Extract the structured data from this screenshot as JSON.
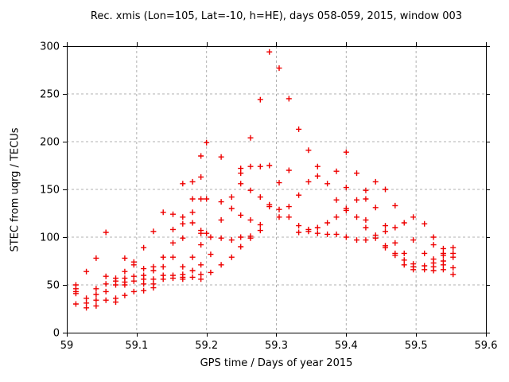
{
  "chart_data": {
    "type": "scatter",
    "title": "Rec. xmis (Lon=105, Lat=-10, h=HE), days 058-059, 2015, window 003",
    "xlabel": "GPS time / Days of year 2015",
    "ylabel": "STEC from uqrg / TECUs",
    "xlim": [
      59,
      59.6
    ],
    "ylim": [
      0,
      300
    ],
    "xticks": {
      "values": [
        59,
        59.1,
        59.2,
        59.3,
        59.4,
        59.5,
        59.6
      ],
      "labels": [
        "59",
        "59.1",
        "59.2",
        "59.3",
        "59.4",
        "59.5",
        "59.6"
      ]
    },
    "yticks": {
      "values": [
        0,
        50,
        100,
        150,
        200,
        250,
        300
      ],
      "labels": [
        "0",
        "50",
        "100",
        "150",
        "200",
        "250",
        "300"
      ]
    },
    "grid": true,
    "grid_color": "#b0b0b0",
    "legend": "none",
    "marker": {
      "shape": "plus",
      "color": "#ee0000",
      "size": 7
    },
    "series": [
      {
        "name": "STEC observations",
        "points": [
          [
            59.013,
            50
          ],
          [
            59.013,
            46
          ],
          [
            59.013,
            43
          ],
          [
            59.013,
            41
          ],
          [
            59.013,
            30
          ],
          [
            59.028,
            64
          ],
          [
            59.028,
            36
          ],
          [
            59.028,
            31
          ],
          [
            59.028,
            26
          ],
          [
            59.042,
            78
          ],
          [
            59.042,
            46
          ],
          [
            59.042,
            40
          ],
          [
            59.042,
            34
          ],
          [
            59.042,
            28
          ],
          [
            59.056,
            105
          ],
          [
            59.056,
            59
          ],
          [
            59.056,
            51
          ],
          [
            59.056,
            43
          ],
          [
            59.056,
            34
          ],
          [
            59.07,
            57
          ],
          [
            59.07,
            54
          ],
          [
            59.07,
            50
          ],
          [
            59.07,
            36
          ],
          [
            59.07,
            32
          ],
          [
            59.083,
            78
          ],
          [
            59.083,
            64
          ],
          [
            59.083,
            57
          ],
          [
            59.083,
            53
          ],
          [
            59.083,
            50
          ],
          [
            59.083,
            39
          ],
          [
            59.096,
            74
          ],
          [
            59.096,
            71
          ],
          [
            59.096,
            59
          ],
          [
            59.096,
            54
          ],
          [
            59.096,
            43
          ],
          [
            59.11,
            89
          ],
          [
            59.11,
            67
          ],
          [
            59.11,
            60
          ],
          [
            59.11,
            56
          ],
          [
            59.11,
            51
          ],
          [
            59.11,
            44
          ],
          [
            59.124,
            106
          ],
          [
            59.124,
            69
          ],
          [
            59.124,
            65
          ],
          [
            59.124,
            56
          ],
          [
            59.124,
            51
          ],
          [
            59.124,
            47
          ],
          [
            59.138,
            126
          ],
          [
            59.138,
            79
          ],
          [
            59.138,
            69
          ],
          [
            59.138,
            60
          ],
          [
            59.138,
            56
          ],
          [
            59.152,
            124
          ],
          [
            59.152,
            108
          ],
          [
            59.152,
            94
          ],
          [
            59.152,
            79
          ],
          [
            59.152,
            60
          ],
          [
            59.152,
            57
          ],
          [
            59.166,
            156
          ],
          [
            59.166,
            121
          ],
          [
            59.166,
            114
          ],
          [
            59.166,
            99
          ],
          [
            59.166,
            69
          ],
          [
            59.166,
            61
          ],
          [
            59.166,
            58
          ],
          [
            59.166,
            56
          ],
          [
            59.18,
            158
          ],
          [
            59.18,
            140
          ],
          [
            59.18,
            126
          ],
          [
            59.18,
            115
          ],
          [
            59.18,
            79
          ],
          [
            59.18,
            65
          ],
          [
            59.18,
            58
          ],
          [
            59.192,
            185
          ],
          [
            59.192,
            163
          ],
          [
            59.192,
            140
          ],
          [
            59.192,
            107
          ],
          [
            59.192,
            104
          ],
          [
            59.192,
            92
          ],
          [
            59.192,
            71
          ],
          [
            59.192,
            61
          ],
          [
            59.192,
            56
          ],
          [
            59.2,
            199
          ],
          [
            59.2,
            140
          ],
          [
            59.2,
            104
          ],
          [
            59.206,
            100
          ],
          [
            59.206,
            82
          ],
          [
            59.206,
            63
          ],
          [
            59.221,
            184
          ],
          [
            59.221,
            137
          ],
          [
            59.221,
            118
          ],
          [
            59.221,
            99
          ],
          [
            59.221,
            71
          ],
          [
            59.236,
            142
          ],
          [
            59.236,
            130
          ],
          [
            59.236,
            97
          ],
          [
            59.236,
            79
          ],
          [
            59.249,
            172
          ],
          [
            59.249,
            167
          ],
          [
            59.249,
            156
          ],
          [
            59.249,
            123
          ],
          [
            59.249,
            100
          ],
          [
            59.249,
            90
          ],
          [
            59.263,
            204
          ],
          [
            59.263,
            174
          ],
          [
            59.263,
            149
          ],
          [
            59.263,
            118
          ],
          [
            59.263,
            101
          ],
          [
            59.263,
            99
          ],
          [
            59.277,
            244
          ],
          [
            59.277,
            174
          ],
          [
            59.277,
            142
          ],
          [
            59.277,
            113
          ],
          [
            59.277,
            107
          ],
          [
            59.29,
            294
          ],
          [
            59.29,
            175
          ],
          [
            59.29,
            134
          ],
          [
            59.29,
            132
          ],
          [
            59.304,
            277
          ],
          [
            59.304,
            157
          ],
          [
            59.304,
            129
          ],
          [
            59.304,
            121
          ],
          [
            59.318,
            245
          ],
          [
            59.318,
            170
          ],
          [
            59.318,
            132
          ],
          [
            59.318,
            121
          ],
          [
            59.332,
            213
          ],
          [
            59.332,
            144
          ],
          [
            59.332,
            112
          ],
          [
            59.332,
            105
          ],
          [
            59.346,
            191
          ],
          [
            59.346,
            158
          ],
          [
            59.346,
            108
          ],
          [
            59.346,
            106
          ],
          [
            59.359,
            174
          ],
          [
            59.359,
            164
          ],
          [
            59.359,
            110
          ],
          [
            59.359,
            104
          ],
          [
            59.373,
            156
          ],
          [
            59.373,
            115
          ],
          [
            59.373,
            103
          ],
          [
            59.386,
            169
          ],
          [
            59.386,
            139
          ],
          [
            59.386,
            121
          ],
          [
            59.386,
            103
          ],
          [
            59.4,
            189
          ],
          [
            59.4,
            152
          ],
          [
            59.4,
            130
          ],
          [
            59.4,
            128
          ],
          [
            59.4,
            100
          ],
          [
            59.415,
            167
          ],
          [
            59.415,
            139
          ],
          [
            59.415,
            121
          ],
          [
            59.415,
            97
          ],
          [
            59.428,
            149
          ],
          [
            59.428,
            140
          ],
          [
            59.428,
            118
          ],
          [
            59.428,
            110
          ],
          [
            59.428,
            97
          ],
          [
            59.442,
            158
          ],
          [
            59.442,
            131
          ],
          [
            59.442,
            102
          ],
          [
            59.442,
            99
          ],
          [
            59.456,
            150
          ],
          [
            59.456,
            112
          ],
          [
            59.456,
            106
          ],
          [
            59.456,
            91
          ],
          [
            59.456,
            89
          ],
          [
            59.47,
            133
          ],
          [
            59.47,
            110
          ],
          [
            59.47,
            94
          ],
          [
            59.47,
            83
          ],
          [
            59.47,
            81
          ],
          [
            59.483,
            115
          ],
          [
            59.483,
            83
          ],
          [
            59.483,
            76
          ],
          [
            59.483,
            71
          ],
          [
            59.496,
            121
          ],
          [
            59.496,
            97
          ],
          [
            59.496,
            72
          ],
          [
            59.496,
            69
          ],
          [
            59.496,
            66
          ],
          [
            59.512,
            114
          ],
          [
            59.512,
            83
          ],
          [
            59.512,
            70
          ],
          [
            59.512,
            66
          ],
          [
            59.525,
            100
          ],
          [
            59.525,
            92
          ],
          [
            59.525,
            77
          ],
          [
            59.525,
            73
          ],
          [
            59.525,
            69
          ],
          [
            59.525,
            65
          ],
          [
            59.539,
            88
          ],
          [
            59.539,
            83
          ],
          [
            59.539,
            81
          ],
          [
            59.539,
            75
          ],
          [
            59.539,
            71
          ],
          [
            59.539,
            66
          ],
          [
            59.553,
            89
          ],
          [
            59.553,
            83
          ],
          [
            59.553,
            79
          ],
          [
            59.553,
            68
          ],
          [
            59.553,
            61
          ]
        ]
      }
    ]
  },
  "colors": {
    "background": "#ffffff",
    "border": "#000000",
    "grid": "#b0b0b0",
    "marker": "#ee0000",
    "text": "#000000"
  }
}
